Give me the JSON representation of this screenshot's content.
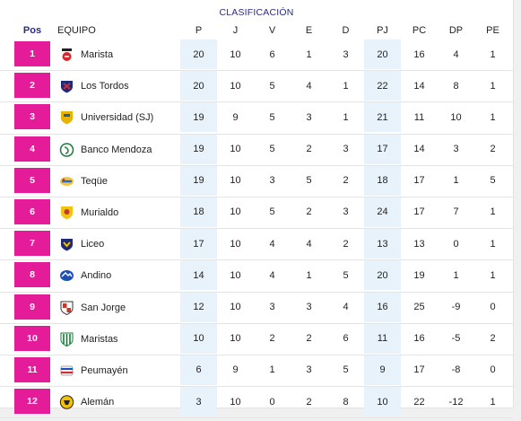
{
  "title": "CLASIFICACIÓN",
  "columns": {
    "pos": "Pos",
    "team": "EQUIPO",
    "stats": [
      "P",
      "J",
      "V",
      "E",
      "D",
      "PJ",
      "PC",
      "DP",
      "PE"
    ]
  },
  "colors": {
    "position_badge": "#e51c9a",
    "title": "#2c2a84",
    "stripe": "#e8f2fa"
  },
  "rows": [
    {
      "pos": "1",
      "team": "Marista",
      "crest": "marista-crest-icon",
      "stats": [
        "20",
        "10",
        "6",
        "1",
        "3",
        "20",
        "16",
        "4",
        "1"
      ]
    },
    {
      "pos": "2",
      "team": "Los Tordos",
      "crest": "los-tordos-crest-icon",
      "stats": [
        "20",
        "10",
        "5",
        "4",
        "1",
        "22",
        "14",
        "8",
        "1"
      ]
    },
    {
      "pos": "3",
      "team": "Universidad (SJ)",
      "crest": "universidad-crest-icon",
      "stats": [
        "19",
        "9",
        "5",
        "3",
        "1",
        "21",
        "11",
        "10",
        "1"
      ]
    },
    {
      "pos": "4",
      "team": "Banco Mendoza",
      "crest": "banco-mendoza-crest-icon",
      "stats": [
        "19",
        "10",
        "5",
        "2",
        "3",
        "17",
        "14",
        "3",
        "2"
      ]
    },
    {
      "pos": "5",
      "team": "Teqüe",
      "crest": "teque-crest-icon",
      "stats": [
        "19",
        "10",
        "3",
        "5",
        "2",
        "18",
        "17",
        "1",
        "5"
      ]
    },
    {
      "pos": "6",
      "team": "Murialdo",
      "crest": "murialdo-crest-icon",
      "stats": [
        "18",
        "10",
        "5",
        "2",
        "3",
        "24",
        "17",
        "7",
        "1"
      ]
    },
    {
      "pos": "7",
      "team": "Liceo",
      "crest": "liceo-crest-icon",
      "stats": [
        "17",
        "10",
        "4",
        "4",
        "2",
        "13",
        "13",
        "0",
        "1"
      ]
    },
    {
      "pos": "8",
      "team": "Andino",
      "crest": "andino-crest-icon",
      "stats": [
        "14",
        "10",
        "4",
        "1",
        "5",
        "20",
        "19",
        "1",
        "1"
      ]
    },
    {
      "pos": "9",
      "team": "San Jorge",
      "crest": "san-jorge-crest-icon",
      "stats": [
        "12",
        "10",
        "3",
        "3",
        "4",
        "16",
        "25",
        "-9",
        "0"
      ]
    },
    {
      "pos": "10",
      "team": "Maristas",
      "crest": "maristas-crest-icon",
      "stats": [
        "10",
        "10",
        "2",
        "2",
        "6",
        "11",
        "16",
        "-5",
        "2"
      ]
    },
    {
      "pos": "11",
      "team": "Peumayén",
      "crest": "peumayen-crest-icon",
      "stats": [
        "6",
        "9",
        "1",
        "3",
        "5",
        "9",
        "17",
        "-8",
        "0"
      ]
    },
    {
      "pos": "12",
      "team": "Alemán",
      "crest": "aleman-crest-icon",
      "stats": [
        "3",
        "10",
        "0",
        "2",
        "8",
        "10",
        "22",
        "-12",
        "1"
      ]
    }
  ]
}
